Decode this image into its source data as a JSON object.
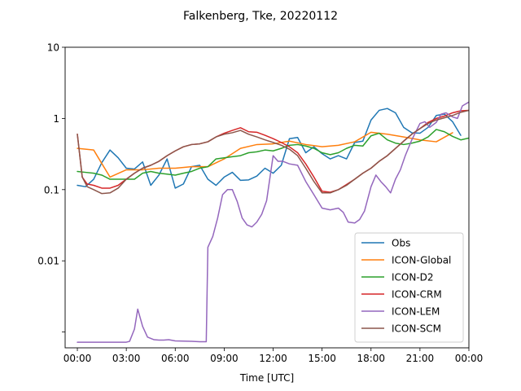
{
  "chart_data": {
    "type": "line",
    "title": "Falkenberg, Tke, 20220112",
    "xlabel": "Time [UTC]",
    "ylabel": "",
    "yscale": "log",
    "xlim": [
      -0.75,
      24.0
    ],
    "ylim": [
      0.0006,
      10
    ],
    "x_ticks": [
      0,
      3,
      6,
      9,
      12,
      15,
      18,
      21,
      24
    ],
    "x_tick_labels": [
      "00:00",
      "03:00",
      "06:00",
      "09:00",
      "12:00",
      "15:00",
      "18:00",
      "21:00",
      "00:00"
    ],
    "y_ticks": [
      0.001,
      0.01,
      0.1,
      1,
      10
    ],
    "y_tick_labels": [
      "",
      "0.01",
      "0.1",
      "1",
      "10"
    ],
    "grid": false,
    "legend_position": "lower-right",
    "series": [
      {
        "name": "Obs",
        "color": "#1f77b4",
        "points": [
          [
            0,
            0.115
          ],
          [
            0.5,
            0.11
          ],
          [
            1,
            0.14
          ],
          [
            1.5,
            0.24
          ],
          [
            2,
            0.36
          ],
          [
            2.5,
            0.28
          ],
          [
            3,
            0.2
          ],
          [
            3.5,
            0.195
          ],
          [
            4,
            0.245
          ],
          [
            4.5,
            0.115
          ],
          [
            5,
            0.16
          ],
          [
            5.5,
            0.27
          ],
          [
            6,
            0.105
          ],
          [
            6.5,
            0.12
          ],
          [
            7,
            0.21
          ],
          [
            7.5,
            0.22
          ],
          [
            8,
            0.14
          ],
          [
            8.5,
            0.115
          ],
          [
            9,
            0.15
          ],
          [
            9.5,
            0.175
          ],
          [
            10,
            0.135
          ],
          [
            10.5,
            0.137
          ],
          [
            11,
            0.155
          ],
          [
            11.5,
            0.2
          ],
          [
            12,
            0.17
          ],
          [
            12.5,
            0.22
          ],
          [
            13,
            0.52
          ],
          [
            13.5,
            0.54
          ],
          [
            14,
            0.33
          ],
          [
            14.5,
            0.4
          ],
          [
            15,
            0.32
          ],
          [
            15.5,
            0.27
          ],
          [
            16,
            0.3
          ],
          [
            16.5,
            0.27
          ],
          [
            17,
            0.46
          ],
          [
            17.5,
            0.48
          ],
          [
            18,
            0.95
          ],
          [
            18.5,
            1.3
          ],
          [
            19,
            1.38
          ],
          [
            19.5,
            1.2
          ],
          [
            20,
            0.75
          ],
          [
            20.5,
            0.63
          ],
          [
            21,
            0.62
          ],
          [
            21.5,
            0.75
          ],
          [
            22,
            1.1
          ],
          [
            22.5,
            1.15
          ],
          [
            23,
            0.9
          ],
          [
            23.5,
            0.58
          ]
        ]
      },
      {
        "name": "ICON-Global",
        "color": "#ff7f0e",
        "points": [
          [
            0,
            0.38
          ],
          [
            1,
            0.36
          ],
          [
            2,
            0.15
          ],
          [
            3,
            0.19
          ],
          [
            4,
            0.19
          ],
          [
            5,
            0.2
          ],
          [
            6,
            0.2
          ],
          [
            7,
            0.21
          ],
          [
            8,
            0.21
          ],
          [
            9,
            0.27
          ],
          [
            10,
            0.38
          ],
          [
            11,
            0.43
          ],
          [
            12,
            0.44
          ],
          [
            13,
            0.48
          ],
          [
            14,
            0.43
          ],
          [
            15,
            0.4
          ],
          [
            16,
            0.42
          ],
          [
            17,
            0.47
          ],
          [
            18,
            0.64
          ],
          [
            19,
            0.6
          ],
          [
            20,
            0.55
          ],
          [
            21,
            0.5
          ],
          [
            22,
            0.47
          ],
          [
            23,
            0.63
          ]
        ]
      },
      {
        "name": "ICON-D2",
        "color": "#2ca02c",
        "points": [
          [
            0,
            0.18
          ],
          [
            0.5,
            0.175
          ],
          [
            1,
            0.17
          ],
          [
            1.5,
            0.16
          ],
          [
            2,
            0.14
          ],
          [
            2.5,
            0.14
          ],
          [
            3,
            0.14
          ],
          [
            3.5,
            0.14
          ],
          [
            4,
            0.17
          ],
          [
            4.5,
            0.18
          ],
          [
            5,
            0.17
          ],
          [
            5.5,
            0.165
          ],
          [
            6,
            0.16
          ],
          [
            6.5,
            0.17
          ],
          [
            7,
            0.18
          ],
          [
            7.5,
            0.2
          ],
          [
            8,
            0.21
          ],
          [
            8.5,
            0.27
          ],
          [
            9,
            0.28
          ],
          [
            9.5,
            0.29
          ],
          [
            10,
            0.3
          ],
          [
            10.5,
            0.33
          ],
          [
            11,
            0.34
          ],
          [
            11.5,
            0.36
          ],
          [
            12,
            0.35
          ],
          [
            12.5,
            0.38
          ],
          [
            13,
            0.42
          ],
          [
            13.5,
            0.43
          ],
          [
            14,
            0.41
          ],
          [
            14.5,
            0.38
          ],
          [
            15,
            0.33
          ],
          [
            15.5,
            0.31
          ],
          [
            16,
            0.33
          ],
          [
            16.5,
            0.38
          ],
          [
            17,
            0.42
          ],
          [
            17.5,
            0.41
          ],
          [
            18,
            0.57
          ],
          [
            18.5,
            0.62
          ],
          [
            19,
            0.5
          ],
          [
            19.5,
            0.45
          ],
          [
            20,
            0.43
          ],
          [
            20.5,
            0.45
          ],
          [
            21,
            0.48
          ],
          [
            21.5,
            0.55
          ],
          [
            22,
            0.7
          ],
          [
            22.5,
            0.65
          ],
          [
            23,
            0.56
          ],
          [
            23.5,
            0.5
          ],
          [
            24,
            0.53
          ]
        ]
      },
      {
        "name": "ICON-CRM",
        "color": "#d62728",
        "points": [
          [
            0,
            0.6
          ],
          [
            0.3,
            0.15
          ],
          [
            0.6,
            0.12
          ],
          [
            1,
            0.115
          ],
          [
            1.5,
            0.105
          ],
          [
            2,
            0.105
          ],
          [
            2.5,
            0.115
          ],
          [
            3,
            0.14
          ],
          [
            3.5,
            0.17
          ],
          [
            4,
            0.2
          ],
          [
            4.5,
            0.22
          ],
          [
            5,
            0.25
          ],
          [
            5.5,
            0.3
          ],
          [
            6,
            0.35
          ],
          [
            6.5,
            0.4
          ],
          [
            7,
            0.43
          ],
          [
            7.5,
            0.44
          ],
          [
            8,
            0.47
          ],
          [
            8.5,
            0.55
          ],
          [
            9,
            0.62
          ],
          [
            9.5,
            0.68
          ],
          [
            10,
            0.74
          ],
          [
            10.5,
            0.65
          ],
          [
            11,
            0.64
          ],
          [
            11.5,
            0.58
          ],
          [
            12,
            0.52
          ],
          [
            12.5,
            0.46
          ],
          [
            13,
            0.4
          ],
          [
            13.5,
            0.33
          ],
          [
            14,
            0.23
          ],
          [
            14.5,
            0.15
          ],
          [
            15,
            0.095
          ],
          [
            15.5,
            0.092
          ],
          [
            16,
            0.1
          ],
          [
            16.5,
            0.118
          ],
          [
            17,
            0.14
          ],
          [
            17.5,
            0.17
          ],
          [
            18,
            0.2
          ],
          [
            18.5,
            0.25
          ],
          [
            19,
            0.3
          ],
          [
            19.5,
            0.38
          ],
          [
            20,
            0.48
          ],
          [
            20.5,
            0.6
          ],
          [
            21,
            0.72
          ],
          [
            21.5,
            0.88
          ],
          [
            22,
            1.0
          ],
          [
            22.5,
            1.08
          ],
          [
            23,
            1.2
          ],
          [
            23.5,
            1.28
          ],
          [
            24,
            1.3
          ]
        ]
      },
      {
        "name": "ICON-LEM",
        "color": "#9467bd",
        "points": [
          [
            0,
            0.00072
          ],
          [
            1,
            0.00072
          ],
          [
            2,
            0.00072
          ],
          [
            3,
            0.00072
          ],
          [
            3.2,
            0.00074
          ],
          [
            3.5,
            0.0011
          ],
          [
            3.7,
            0.0021
          ],
          [
            4,
            0.0012
          ],
          [
            4.3,
            0.00085
          ],
          [
            4.7,
            0.00078
          ],
          [
            5,
            0.00077
          ],
          [
            5.3,
            0.00077
          ],
          [
            5.6,
            0.00078
          ],
          [
            6,
            0.00075
          ],
          [
            7,
            0.00074
          ],
          [
            7.5,
            0.00073
          ],
          [
            7.9,
            0.00073
          ],
          [
            8,
            0.0155
          ],
          [
            8.3,
            0.022
          ],
          [
            8.6,
            0.04
          ],
          [
            8.9,
            0.085
          ],
          [
            9.2,
            0.1
          ],
          [
            9.5,
            0.1
          ],
          [
            9.8,
            0.068
          ],
          [
            10.1,
            0.04
          ],
          [
            10.4,
            0.032
          ],
          [
            10.7,
            0.03
          ],
          [
            11,
            0.035
          ],
          [
            11.3,
            0.045
          ],
          [
            11.6,
            0.07
          ],
          [
            12,
            0.3
          ],
          [
            12.3,
            0.25
          ],
          [
            12.6,
            0.25
          ],
          [
            13,
            0.23
          ],
          [
            13.5,
            0.22
          ],
          [
            14,
            0.13
          ],
          [
            14.5,
            0.085
          ],
          [
            15,
            0.055
          ],
          [
            15.5,
            0.052
          ],
          [
            16,
            0.055
          ],
          [
            16.3,
            0.048
          ],
          [
            16.6,
            0.035
          ],
          [
            17,
            0.034
          ],
          [
            17.3,
            0.038
          ],
          [
            17.6,
            0.05
          ],
          [
            18,
            0.11
          ],
          [
            18.3,
            0.16
          ],
          [
            18.6,
            0.13
          ],
          [
            18.9,
            0.11
          ],
          [
            19.2,
            0.09
          ],
          [
            19.5,
            0.14
          ],
          [
            19.8,
            0.19
          ],
          [
            20.1,
            0.3
          ],
          [
            20.5,
            0.5
          ],
          [
            21,
            0.85
          ],
          [
            21.3,
            0.9
          ],
          [
            21.6,
            0.75
          ],
          [
            22,
            0.88
          ],
          [
            22.3,
            1.15
          ],
          [
            22.6,
            1.2
          ],
          [
            23,
            1.05
          ],
          [
            23.3,
            1.0
          ],
          [
            23.6,
            1.5
          ],
          [
            24,
            1.7
          ],
          [
            24.2,
            2.0
          ]
        ]
      },
      {
        "name": "ICON-SCM",
        "color": "#8c564b",
        "points": [
          [
            0,
            0.6
          ],
          [
            0.3,
            0.15
          ],
          [
            0.6,
            0.11
          ],
          [
            1,
            0.1
          ],
          [
            1.5,
            0.088
          ],
          [
            2,
            0.09
          ],
          [
            2.5,
            0.105
          ],
          [
            3,
            0.14
          ],
          [
            3.5,
            0.17
          ],
          [
            4,
            0.2
          ],
          [
            4.5,
            0.22
          ],
          [
            5,
            0.25
          ],
          [
            5.5,
            0.3
          ],
          [
            6,
            0.35
          ],
          [
            6.5,
            0.4
          ],
          [
            7,
            0.43
          ],
          [
            7.5,
            0.44
          ],
          [
            8,
            0.47
          ],
          [
            8.5,
            0.55
          ],
          [
            9,
            0.6
          ],
          [
            9.5,
            0.63
          ],
          [
            10,
            0.68
          ],
          [
            10.5,
            0.6
          ],
          [
            11,
            0.55
          ],
          [
            11.5,
            0.5
          ],
          [
            12,
            0.46
          ],
          [
            12.5,
            0.42
          ],
          [
            13,
            0.37
          ],
          [
            13.5,
            0.3
          ],
          [
            14,
            0.2
          ],
          [
            14.5,
            0.13
          ],
          [
            15,
            0.09
          ],
          [
            15.5,
            0.09
          ],
          [
            16,
            0.1
          ],
          [
            16.5,
            0.115
          ],
          [
            17,
            0.14
          ],
          [
            17.5,
            0.17
          ],
          [
            18,
            0.2
          ],
          [
            18.5,
            0.25
          ],
          [
            19,
            0.3
          ],
          [
            19.5,
            0.38
          ],
          [
            20,
            0.48
          ],
          [
            20.5,
            0.6
          ],
          [
            21,
            0.72
          ],
          [
            21.5,
            0.85
          ],
          [
            22,
            0.95
          ],
          [
            22.5,
            1.02
          ],
          [
            23,
            1.1
          ],
          [
            23.5,
            1.22
          ],
          [
            24,
            1.3
          ]
        ]
      }
    ]
  }
}
